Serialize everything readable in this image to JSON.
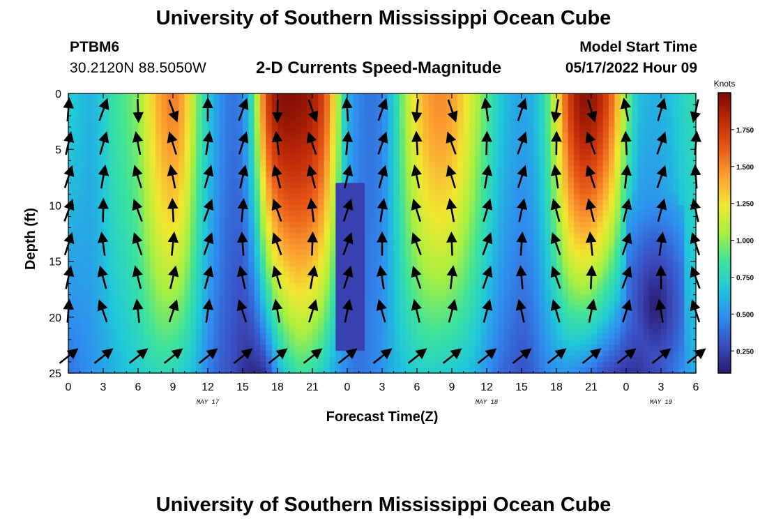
{
  "header": {
    "title": "University of Southern Mississippi Ocean Cube",
    "station": "PTBM6",
    "coordinates": "30.2120N  88.5050W",
    "subtitle": "2-D Currents Speed-Magnitude",
    "model_start_label": "Model Start Time",
    "model_start_value": "05/17/2022 Hour 09"
  },
  "footer": {
    "title": "University of Southern Mississippi Ocean Cube"
  },
  "chart_data": {
    "type": "heatmap",
    "title": "2-D Currents Speed-Magnitude",
    "xlabel": "Forecast Time(Z)",
    "ylabel": "Depth (ft)",
    "x_tick_labels": [
      "0",
      "3",
      "6",
      "9",
      "12",
      "15",
      "18",
      "21",
      "0",
      "3",
      "6",
      "9",
      "12",
      "15",
      "18",
      "21",
      "0",
      "3",
      "6"
    ],
    "date_labels": [
      {
        "text": "MAY 17",
        "hours_from_start": 12
      },
      {
        "text": "MAY 18",
        "hours_from_start": 36
      },
      {
        "text": "MAY 19",
        "hours_from_start": 51
      }
    ],
    "xlim_hours": [
      0,
      54
    ],
    "ylim_ft": [
      0,
      25
    ],
    "y_tick_labels": [
      "0",
      "5",
      "10",
      "15",
      "20",
      "25"
    ],
    "y_reversed": true,
    "colorbar": {
      "label": "Knots",
      "ticks": [
        "0.250",
        "0.500",
        "0.750",
        "1.000",
        "1.250",
        "1.500",
        "1.750"
      ],
      "range": [
        0.1,
        2.0
      ]
    },
    "colors": {
      "scale": [
        "#2b1a6e",
        "#3b4cc0",
        "#2f8cf0",
        "#20c8d8",
        "#3ee39a",
        "#a8ef40",
        "#f0e830",
        "#fca232",
        "#e85a18",
        "#c02a08",
        "#7a0a03"
      ]
    },
    "speed_profile_knots": {
      "hours": [
        0,
        1,
        2,
        3,
        4,
        5,
        6,
        7,
        8,
        9,
        10,
        11,
        12,
        13,
        14,
        15,
        16,
        17,
        18,
        19,
        20,
        21,
        22,
        23,
        24,
        25,
        26,
        27,
        28,
        29,
        30,
        31,
        32,
        33,
        34,
        35,
        36,
        37,
        38,
        39,
        40,
        41,
        42,
        43,
        44,
        45,
        46,
        47,
        48,
        49,
        50,
        51,
        52,
        53,
        54
      ],
      "surface": [
        0.7,
        0.65,
        0.6,
        0.7,
        0.85,
        0.9,
        1.0,
        1.25,
        1.45,
        1.55,
        1.4,
        1.0,
        0.7,
        0.5,
        0.4,
        0.45,
        0.9,
        1.7,
        1.95,
        1.98,
        1.95,
        1.9,
        1.7,
        1.2,
        0.6,
        0.45,
        0.4,
        0.45,
        0.7,
        1.05,
        1.3,
        1.45,
        1.5,
        1.45,
        1.3,
        1.1,
        0.9,
        0.7,
        0.6,
        0.55,
        0.6,
        0.8,
        1.2,
        1.7,
        1.95,
        1.95,
        1.8,
        1.5,
        1.0,
        0.65,
        0.6,
        0.6,
        0.65,
        0.75,
        0.8
      ],
      "bottom": [
        0.4,
        0.45,
        0.5,
        0.55,
        0.6,
        0.65,
        0.7,
        0.75,
        0.78,
        0.75,
        0.7,
        0.6,
        0.45,
        0.35,
        0.3,
        0.2,
        0.15,
        0.2,
        0.55,
        0.75,
        0.85,
        0.8,
        0.7,
        0.55,
        0.45,
        0.4,
        0.45,
        0.5,
        0.6,
        0.65,
        0.7,
        0.72,
        0.7,
        0.68,
        0.65,
        0.6,
        0.5,
        0.4,
        0.35,
        0.3,
        0.35,
        0.45,
        0.5,
        0.5,
        0.45,
        0.4,
        0.3,
        0.25,
        0.2,
        0.2,
        0.25,
        0.3,
        0.4,
        0.5,
        0.6
      ]
    },
    "vectors_note": "Current direction arrows overlay, sampled every 3 hours."
  }
}
